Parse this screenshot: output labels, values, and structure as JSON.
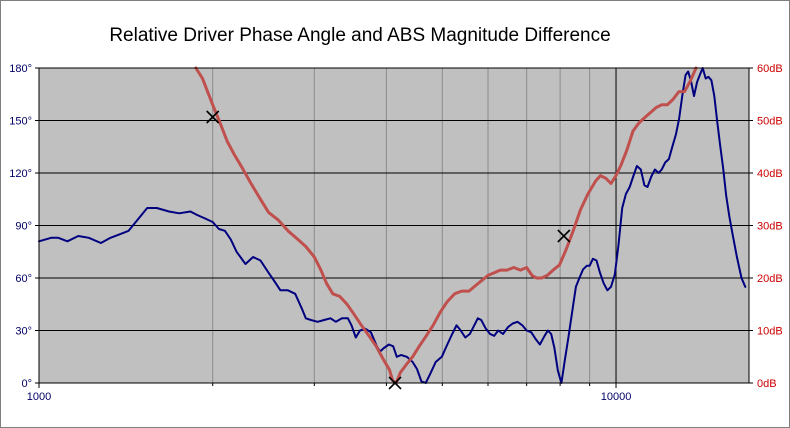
{
  "chart_data": {
    "type": "line",
    "title": "Relative Driver Phase Angle and ABS Magnitude  Difference",
    "x_axis": {
      "scale": "log",
      "range": [
        1000,
        17000
      ],
      "tick_labels": [
        {
          "value": 1000,
          "label": "1000"
        },
        {
          "value": 10000,
          "label": "10000"
        }
      ]
    },
    "y_axis_left": {
      "range": [
        0,
        180
      ],
      "tick_labels": [
        {
          "value": 0,
          "label": "0°"
        },
        {
          "value": 30,
          "label": "30°"
        },
        {
          "value": 60,
          "label": "60°"
        },
        {
          "value": 90,
          "label": "90°"
        },
        {
          "value": 120,
          "label": "120°"
        },
        {
          "value": 150,
          "label": "150°"
        },
        {
          "value": 180,
          "label": "180°"
        }
      ],
      "color": "#000066"
    },
    "y_axis_right": {
      "range": [
        0,
        60
      ],
      "tick_labels": [
        {
          "value": 0,
          "label": "0dB"
        },
        {
          "value": 10,
          "label": "10dB"
        },
        {
          "value": 20,
          "label": "20dB"
        },
        {
          "value": 30,
          "label": "30dB"
        },
        {
          "value": 40,
          "label": "40dB"
        },
        {
          "value": 50,
          "label": "50dB"
        },
        {
          "value": 60,
          "label": "60dB"
        }
      ],
      "color": "#cc0000"
    },
    "grid": true,
    "plot_background": "#c0c0c0",
    "series": [
      {
        "color": "#000080",
        "axis": "left",
        "points": [
          [
            1000,
            81
          ],
          [
            1050,
            83
          ],
          [
            1080,
            83
          ],
          [
            1120,
            81
          ],
          [
            1170,
            84
          ],
          [
            1220,
            83
          ],
          [
            1280,
            80
          ],
          [
            1330,
            83
          ],
          [
            1380,
            85
          ],
          [
            1430,
            87
          ],
          [
            1480,
            93
          ],
          [
            1540,
            100
          ],
          [
            1600,
            100
          ],
          [
            1680,
            98
          ],
          [
            1750,
            97
          ],
          [
            1830,
            98
          ],
          [
            1880,
            96
          ],
          [
            1940,
            94
          ],
          [
            2000,
            92
          ],
          [
            2050,
            88
          ],
          [
            2100,
            87
          ],
          [
            2150,
            82
          ],
          [
            2200,
            75
          ],
          [
            2280,
            68
          ],
          [
            2350,
            72
          ],
          [
            2420,
            70
          ],
          [
            2500,
            63
          ],
          [
            2560,
            58
          ],
          [
            2620,
            53
          ],
          [
            2700,
            53
          ],
          [
            2780,
            51
          ],
          [
            2850,
            43
          ],
          [
            2900,
            37
          ],
          [
            2960,
            36
          ],
          [
            3040,
            35
          ],
          [
            3120,
            36
          ],
          [
            3200,
            37
          ],
          [
            3270,
            35
          ],
          [
            3350,
            37
          ],
          [
            3430,
            37
          ],
          [
            3480,
            33
          ],
          [
            3540,
            26
          ],
          [
            3600,
            30
          ],
          [
            3680,
            31
          ],
          [
            3760,
            29
          ],
          [
            3850,
            21
          ],
          [
            3900,
            18
          ],
          [
            3960,
            20
          ],
          [
            4040,
            22
          ],
          [
            4110,
            21
          ],
          [
            4170,
            15
          ],
          [
            4240,
            16
          ],
          [
            4340,
            15
          ],
          [
            4440,
            12
          ],
          [
            4520,
            8
          ],
          [
            4600,
            1
          ],
          [
            4680,
            0
          ],
          [
            4760,
            5
          ],
          [
            4870,
            12
          ],
          [
            4990,
            15
          ],
          [
            5100,
            22
          ],
          [
            5200,
            28
          ],
          [
            5290,
            33
          ],
          [
            5380,
            30
          ],
          [
            5480,
            26
          ],
          [
            5580,
            28
          ],
          [
            5680,
            33
          ],
          [
            5760,
            37
          ],
          [
            5840,
            36
          ],
          [
            5950,
            31
          ],
          [
            6050,
            28
          ],
          [
            6150,
            27
          ],
          [
            6250,
            30
          ],
          [
            6370,
            28
          ],
          [
            6500,
            32
          ],
          [
            6620,
            34
          ],
          [
            6750,
            35
          ],
          [
            6880,
            33
          ],
          [
            7000,
            30
          ],
          [
            7130,
            29
          ],
          [
            7260,
            25
          ],
          [
            7380,
            22
          ],
          [
            7520,
            27
          ],
          [
            7620,
            30
          ],
          [
            7720,
            28
          ],
          [
            7820,
            20
          ],
          [
            7930,
            7
          ],
          [
            8040,
            0
          ],
          [
            8150,
            13
          ],
          [
            8270,
            26
          ],
          [
            8390,
            40
          ],
          [
            8520,
            55
          ],
          [
            8640,
            60
          ],
          [
            8770,
            65
          ],
          [
            8900,
            67
          ],
          [
            9000,
            67
          ],
          [
            9120,
            71
          ],
          [
            9250,
            70
          ],
          [
            9380,
            63
          ],
          [
            9520,
            57
          ],
          [
            9660,
            53
          ],
          [
            9800,
            55
          ],
          [
            9950,
            62
          ],
          [
            10100,
            79
          ],
          [
            10250,
            100
          ],
          [
            10400,
            108
          ],
          [
            10560,
            112
          ],
          [
            10710,
            118
          ],
          [
            10870,
            124
          ],
          [
            11040,
            122
          ],
          [
            11200,
            113
          ],
          [
            11340,
            112
          ],
          [
            11510,
            118
          ],
          [
            11680,
            122
          ],
          [
            11850,
            120
          ],
          [
            12000,
            122
          ],
          [
            12170,
            126
          ],
          [
            12350,
            128
          ],
          [
            12520,
            135
          ],
          [
            12700,
            142
          ],
          [
            12860,
            151
          ],
          [
            13040,
            165
          ],
          [
            13200,
            176
          ],
          [
            13340,
            178
          ],
          [
            13500,
            172
          ],
          [
            13650,
            164
          ],
          [
            13820,
            172
          ],
          [
            13970,
            176
          ],
          [
            14130,
            180
          ],
          [
            14300,
            174
          ],
          [
            14460,
            175
          ],
          [
            14630,
            173
          ],
          [
            14800,
            164
          ],
          [
            14970,
            150
          ],
          [
            15150,
            136
          ],
          [
            15330,
            123
          ],
          [
            15520,
            107
          ],
          [
            15720,
            95
          ],
          [
            15920,
            85
          ],
          [
            16200,
            72
          ],
          [
            16500,
            60
          ],
          [
            16750,
            55
          ]
        ]
      },
      {
        "color": "#c0504d",
        "axis": "right",
        "points": [
          [
            1870,
            60
          ],
          [
            1920,
            58
          ],
          [
            2000,
            53
          ],
          [
            2060,
            49.5
          ],
          [
            2120,
            46
          ],
          [
            2180,
            43.5
          ],
          [
            2250,
            41
          ],
          [
            2330,
            38
          ],
          [
            2420,
            35
          ],
          [
            2500,
            32.5
          ],
          [
            2600,
            31
          ],
          [
            2700,
            29
          ],
          [
            2800,
            27.5
          ],
          [
            2900,
            26
          ],
          [
            3000,
            24
          ],
          [
            3080,
            21.5
          ],
          [
            3150,
            19
          ],
          [
            3230,
            17
          ],
          [
            3320,
            16.5
          ],
          [
            3420,
            15
          ],
          [
            3520,
            13
          ],
          [
            3620,
            11
          ],
          [
            3730,
            9
          ],
          [
            3840,
            7
          ],
          [
            3950,
            4.5
          ],
          [
            4050,
            2.5
          ],
          [
            4100,
            0.5
          ],
          [
            4160,
            0
          ],
          [
            4230,
            2
          ],
          [
            4330,
            3.5
          ],
          [
            4440,
            5
          ],
          [
            4560,
            7
          ],
          [
            4690,
            9
          ],
          [
            4820,
            11
          ],
          [
            4960,
            13.5
          ],
          [
            5100,
            15.5
          ],
          [
            5250,
            17
          ],
          [
            5400,
            17.5
          ],
          [
            5560,
            17.5
          ],
          [
            5700,
            18.5
          ],
          [
            5850,
            19.5
          ],
          [
            6000,
            20.5
          ],
          [
            6150,
            21
          ],
          [
            6300,
            21.5
          ],
          [
            6470,
            21.5
          ],
          [
            6650,
            22
          ],
          [
            6830,
            21.5
          ],
          [
            7000,
            22
          ],
          [
            7150,
            20.5
          ],
          [
            7280,
            20
          ],
          [
            7430,
            20
          ],
          [
            7600,
            20.5
          ],
          [
            7780,
            21.5
          ],
          [
            7980,
            22.5
          ],
          [
            8200,
            25.5
          ],
          [
            8430,
            29
          ],
          [
            8680,
            33
          ],
          [
            8940,
            36
          ],
          [
            9220,
            38.5
          ],
          [
            9400,
            39.5
          ],
          [
            9600,
            39
          ],
          [
            9800,
            38
          ],
          [
            10000,
            39.5
          ],
          [
            10200,
            41.5
          ],
          [
            10450,
            44.5
          ],
          [
            10700,
            48
          ],
          [
            10950,
            49.5
          ],
          [
            11200,
            50.5
          ],
          [
            11470,
            51.5
          ],
          [
            11750,
            52.5
          ],
          [
            12000,
            53
          ],
          [
            12270,
            53
          ],
          [
            12550,
            54
          ],
          [
            12850,
            55.5
          ],
          [
            13140,
            55.5
          ],
          [
            13450,
            57.5
          ],
          [
            13760,
            60
          ]
        ]
      }
    ],
    "markers": [
      {
        "x": 2000,
        "y": 152,
        "axis": "left"
      },
      {
        "x": 4140,
        "y": 0,
        "axis": "left"
      },
      {
        "x": 8120,
        "y": 84,
        "axis": "left"
      }
    ]
  }
}
